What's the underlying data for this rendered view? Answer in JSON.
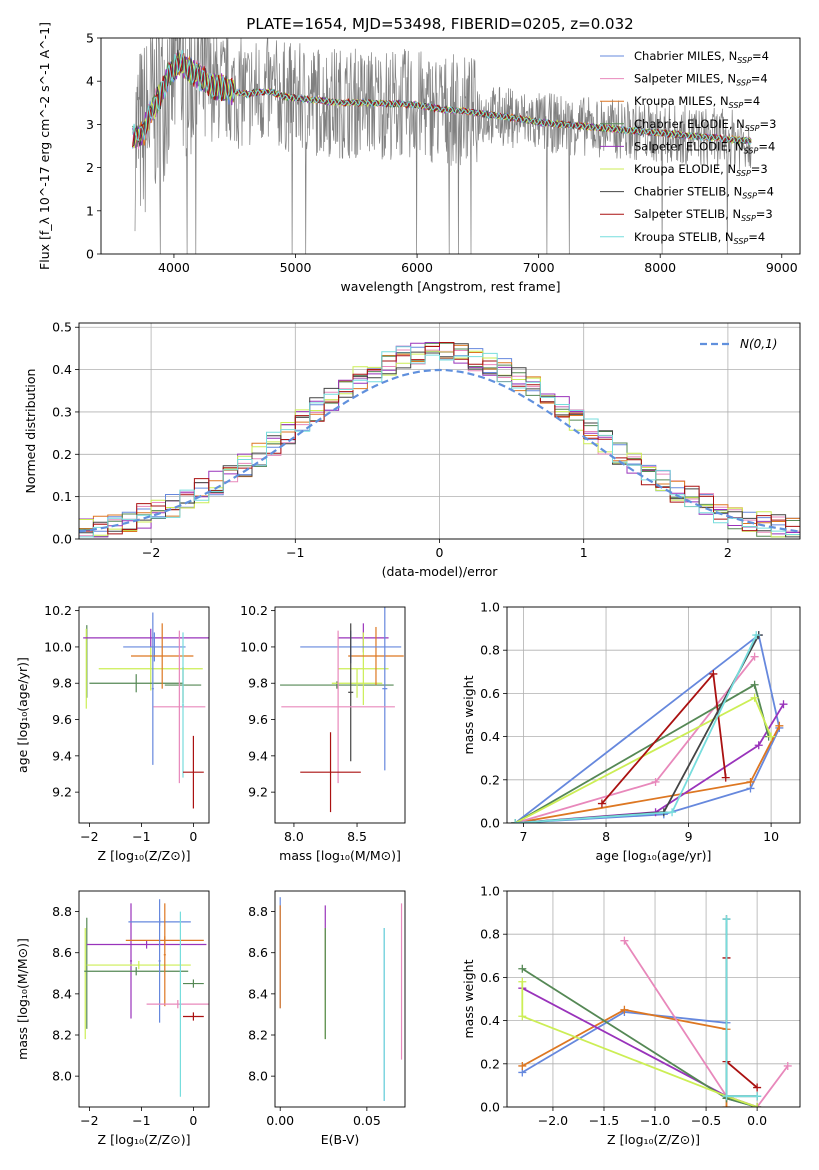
{
  "figure_title": "PLATE=1654, MJD=53498, FIBERID=0205, z=0.032",
  "colors": {
    "chabrier_miles": "#6688dd",
    "salpeter_miles": "#e888bb",
    "kroupa_miles": "#dd7722",
    "chabrier_elodie": "#558855",
    "salpeter_elodie": "#9933bb",
    "kroupa_elodie": "#ccee55",
    "chabrier_stelib": "#444444",
    "salpeter_stelib": "#aa1111",
    "kroupa_stelib": "#77dddd",
    "data_spectrum": "#808080",
    "normal_curve": "#6090dd"
  },
  "chart_data": [
    {
      "id": "spectrum",
      "type": "line",
      "xlabel": "wavelength [Angstrom, rest frame]",
      "ylabel": "Flux [f_λ 10^-17 erg cm^-2 s^-1 A^-1]",
      "xlim": [
        3400,
        9150
      ],
      "ylim": [
        0,
        5
      ],
      "xticks": [
        4000,
        5000,
        6000,
        7000,
        8000,
        9000
      ],
      "yticks": [
        0,
        1,
        2,
        3,
        4,
        5
      ],
      "legend_location": "upper right",
      "legend": [
        {
          "label": "Chabrier MILES, N",
          "sub": "SSP",
          "suffix": "=4",
          "color_key": "chabrier_miles"
        },
        {
          "label": "Salpeter MILES, N",
          "sub": "SSP",
          "suffix": "=4",
          "color_key": "salpeter_miles"
        },
        {
          "label": "Kroupa MILES, N",
          "sub": "SSP",
          "suffix": "=4",
          "color_key": "kroupa_miles"
        },
        {
          "label": "Chabrier ELODIE, N",
          "sub": "SSP",
          "suffix": "=3",
          "color_key": "chabrier_elodie"
        },
        {
          "label": "Salpeter ELODIE, N",
          "sub": "SSP",
          "suffix": "=4",
          "color_key": "salpeter_elodie"
        },
        {
          "label": "Kroupa ELODIE, N",
          "sub": "SSP",
          "suffix": "=3",
          "color_key": "kroupa_elodie"
        },
        {
          "label": "Chabrier STELIB, N",
          "sub": "SSP",
          "suffix": "=4",
          "color_key": "chabrier_stelib"
        },
        {
          "label": "Salpeter STELIB, N",
          "sub": "SSP",
          "suffix": "=3",
          "color_key": "salpeter_stelib"
        },
        {
          "label": "Kroupa STELIB, N",
          "sub": "SSP",
          "suffix": "=4",
          "color_key": "kroupa_stelib"
        }
      ],
      "model_continuum": {
        "x": [
          3650,
          3700,
          3750,
          3800,
          3850,
          3900,
          3950,
          4000,
          4050,
          4100,
          4200,
          4300,
          4400,
          4500,
          4600,
          4700,
          4800,
          4900,
          5000,
          5200,
          5400,
          5600,
          5800,
          6000,
          6200,
          6400,
          6600,
          6800,
          7000,
          7200,
          7400,
          7600,
          7800,
          8000,
          8200,
          8400,
          8600,
          8800
        ],
        "y": [
          2.7,
          2.75,
          2.8,
          3.2,
          3.5,
          3.75,
          4.1,
          4.3,
          4.45,
          4.3,
          4.15,
          3.9,
          3.85,
          3.75,
          3.7,
          3.75,
          3.75,
          3.65,
          3.6,
          3.55,
          3.5,
          3.5,
          3.48,
          3.45,
          3.35,
          3.3,
          3.22,
          3.15,
          3.05,
          3.0,
          2.95,
          2.9,
          2.85,
          2.8,
          2.75,
          2.7,
          2.65,
          2.6
        ]
      },
      "data_spectrum": {
        "x_range": [
          3680,
          8750
        ],
        "y_noise_amplitude": 1.4
      }
    },
    {
      "id": "residuals",
      "type": "histogram",
      "xlabel": "(data-model)/error",
      "ylabel": "Normed distribution",
      "xlim": [
        -2.5,
        2.5
      ],
      "ylim": [
        0,
        0.51
      ],
      "xticks": [
        -2,
        -1,
        0,
        1,
        2
      ],
      "yticks": [
        0.0,
        0.1,
        0.2,
        0.3,
        0.4,
        0.5
      ],
      "grid": true,
      "legend_location": "upper right",
      "reference_curve_label": "N(0,1)",
      "bin_width": 0.1,
      "bins_from": -2.5,
      "reference_curve": {
        "type": "normal",
        "mean": 0,
        "sigma": 1
      }
    },
    {
      "id": "age_vs_Z",
      "type": "errorbar",
      "xlabel": "Z [log10(Z/Z⊙)]",
      "ylabel": "age  [log10(age/yr)]",
      "xlim": [
        -2.2,
        0.3
      ],
      "ylim": [
        9.03,
        10.22
      ],
      "xticks": [
        -2,
        -1,
        0
      ],
      "yticks": [
        9.2,
        9.4,
        9.6,
        9.8,
        10.0,
        10.2
      ],
      "points": [
        {
          "x": -2.05,
          "xerr": 0.0,
          "y": 9.92,
          "yerr": 0.2,
          "color_key": "chabrier_elodie"
        },
        {
          "x": -2.06,
          "xerr": 0.0,
          "y": 9.88,
          "yerr": 0.22,
          "color_key": "kroupa_elodie"
        },
        {
          "x": -0.82,
          "xerr": 1.3,
          "y": 10.05,
          "yerr": 0.05,
          "color_key": "salpeter_elodie"
        },
        {
          "x": -0.82,
          "xerr": 1.0,
          "y": 9.88,
          "yerr": 0.12,
          "color_key": "kroupa_elodie"
        },
        {
          "x": -1.1,
          "xerr": 0.9,
          "y": 9.8,
          "yerr": 0.05,
          "color_key": "chabrier_elodie"
        },
        {
          "x": -0.2,
          "xerr": 0.35,
          "y": 9.79,
          "yerr": 0.1,
          "color_key": "chabrier_elodie"
        },
        {
          "x": -0.75,
          "xerr": 0.6,
          "y": 10.0,
          "yerr": 0.08,
          "color_key": "chabrier_miles"
        },
        {
          "x": -0.6,
          "xerr": 0.6,
          "y": 9.95,
          "yerr": 0.18,
          "color_key": "kroupa_miles"
        },
        {
          "x": -0.78,
          "xerr": 0.02,
          "y": 9.77,
          "yerr": 0.42,
          "color_key": "chabrier_miles"
        },
        {
          "x": -0.27,
          "xerr": 0.5,
          "y": 9.67,
          "yerr": 0.42,
          "color_key": "salpeter_miles"
        },
        {
          "x": -0.2,
          "xerr": 0.02,
          "y": 9.68,
          "yerr": 0.4,
          "color_key": "kroupa_stelib"
        },
        {
          "x": 0.0,
          "xerr": 0.2,
          "y": 9.31,
          "yerr": 0.2,
          "color_key": "salpeter_stelib"
        }
      ]
    },
    {
      "id": "age_vs_mass",
      "type": "errorbar",
      "xlabel": "mass [log10(M/M⊙)]",
      "ylabel": "",
      "xlim": [
        7.85,
        8.88
      ],
      "ylim": [
        9.03,
        10.22
      ],
      "xticks": [
        8.0,
        8.5
      ],
      "yticks": [
        9.2,
        9.4,
        9.6,
        9.8,
        10.0,
        10.2
      ],
      "points": [
        {
          "x": 8.34,
          "xerr": 0.45,
          "y": 9.79,
          "yerr": 0.02,
          "color_key": "chabrier_elodie"
        },
        {
          "x": 8.5,
          "xerr": 0.2,
          "y": 9.8,
          "yerr": 0.08,
          "color_key": "kroupa_elodie"
        },
        {
          "x": 8.55,
          "xerr": 0.2,
          "y": 10.05,
          "yerr": 0.08,
          "color_key": "salpeter_elodie"
        },
        {
          "x": 8.55,
          "xerr": 0.2,
          "y": 9.88,
          "yerr": 0.2,
          "color_key": "kroupa_elodie"
        },
        {
          "x": 8.65,
          "xerr": 0.22,
          "y": 9.95,
          "yerr": 0.16,
          "color_key": "kroupa_miles"
        },
        {
          "x": 8.45,
          "xerr": 0.4,
          "y": 10.0,
          "yerr": 0.09,
          "color_key": "chabrier_miles"
        },
        {
          "x": 8.45,
          "xerr": 0.02,
          "y": 9.75,
          "yerr": 0.38,
          "color_key": "chabrier_stelib"
        },
        {
          "x": 8.72,
          "xerr": 0.02,
          "y": 9.77,
          "yerr": 0.45,
          "color_key": "chabrier_miles"
        },
        {
          "x": 8.35,
          "xerr": 0.45,
          "y": 9.67,
          "yerr": 0.42,
          "color_key": "salpeter_miles"
        },
        {
          "x": 8.29,
          "xerr": 0.24,
          "y": 9.31,
          "yerr": 0.22,
          "color_key": "salpeter_stelib"
        }
      ]
    },
    {
      "id": "mass_weight_vs_age",
      "type": "line",
      "xlabel": "age  [log10(age/yr)]",
      "ylabel": "mass weight",
      "xlim": [
        6.8,
        10.35
      ],
      "ylim": [
        0,
        1.0
      ],
      "xticks": [
        7,
        8,
        9,
        10
      ],
      "yticks": [
        0.0,
        0.2,
        0.4,
        0.6,
        0.8,
        1.0
      ],
      "grid": true,
      "series": [
        {
          "color_key": "chabrier_miles",
          "x": [
            6.9,
            8.7,
            9.75,
            10.1,
            9.85,
            6.9
          ],
          "y": [
            0.0,
            0.04,
            0.16,
            0.44,
            0.87,
            0.0
          ]
        },
        {
          "color_key": "kroupa_miles",
          "x": [
            6.9,
            9.75,
            10.1
          ],
          "y": [
            0.0,
            0.19,
            0.45
          ]
        },
        {
          "color_key": "salpeter_miles",
          "x": [
            6.9,
            8.6,
            9.8
          ],
          "y": [
            0.0,
            0.19,
            0.77
          ]
        },
        {
          "color_key": "salpeter_elodie",
          "x": [
            6.9,
            8.6,
            9.85,
            10.15
          ],
          "y": [
            0.0,
            0.05,
            0.36,
            0.55
          ]
        },
        {
          "color_key": "chabrier_elodie",
          "x": [
            6.9,
            9.8,
            9.97
          ],
          "y": [
            0.0,
            0.64,
            0.4
          ]
        },
        {
          "color_key": "kroupa_elodie",
          "x": [
            6.9,
            9.8,
            10.0
          ],
          "y": [
            0.0,
            0.58,
            0.4
          ]
        },
        {
          "color_key": "salpeter_stelib",
          "x": [
            7.95,
            9.3,
            9.45
          ],
          "y": [
            0.09,
            0.69,
            0.21
          ]
        },
        {
          "color_key": "chabrier_stelib",
          "x": [
            6.9,
            8.7,
            9.85
          ],
          "y": [
            0.0,
            0.05,
            0.87
          ]
        },
        {
          "color_key": "kroupa_stelib",
          "x": [
            6.9,
            8.8,
            9.82
          ],
          "y": [
            0.0,
            0.05,
            0.87
          ]
        }
      ]
    },
    {
      "id": "mass_vs_Z",
      "type": "errorbar",
      "xlabel": "Z [log10(Z/Z⊙)]",
      "ylabel": "mass [log10(M/M⊙)]",
      "xlim": [
        -2.2,
        0.3
      ],
      "ylim": [
        7.85,
        8.9
      ],
      "xticks": [
        -2,
        -1,
        0
      ],
      "yticks": [
        8.0,
        8.2,
        8.4,
        8.6,
        8.8
      ],
      "points": [
        {
          "x": -2.05,
          "xerr": 0.0,
          "y": 8.5,
          "yerr": 0.27,
          "color_key": "chabrier_elodie"
        },
        {
          "x": -2.08,
          "xerr": 0.0,
          "y": 8.45,
          "yerr": 0.27,
          "color_key": "kroupa_elodie"
        },
        {
          "x": -0.9,
          "xerr": 1.15,
          "y": 8.64,
          "yerr": 0.02,
          "color_key": "salpeter_elodie"
        },
        {
          "x": -1.2,
          "xerr": 0.02,
          "y": 8.56,
          "yerr": 0.28,
          "color_key": "salpeter_elodie"
        },
        {
          "x": -1.05,
          "xerr": 1.0,
          "y": 8.54,
          "yerr": 0.02,
          "color_key": "kroupa_elodie"
        },
        {
          "x": -1.1,
          "xerr": 1.0,
          "y": 8.51,
          "yerr": 0.02,
          "color_key": "chabrier_elodie"
        },
        {
          "x": -0.65,
          "xerr": 0.6,
          "y": 8.75,
          "yerr": 0.02,
          "color_key": "chabrier_miles"
        },
        {
          "x": -0.55,
          "xerr": 0.75,
          "y": 8.66,
          "yerr": 0.02,
          "color_key": "kroupa_miles"
        },
        {
          "x": -0.65,
          "xerr": 0.02,
          "y": 8.56,
          "yerr": 0.3,
          "color_key": "chabrier_miles"
        },
        {
          "x": -0.55,
          "xerr": 0.02,
          "y": 8.59,
          "yerr": 0.25,
          "color_key": "kroupa_miles"
        },
        {
          "x": -0.3,
          "xerr": 0.6,
          "y": 8.35,
          "yerr": 0.02,
          "color_key": "salpeter_miles"
        },
        {
          "x": -0.25,
          "xerr": 0.02,
          "y": 8.35,
          "yerr": 0.45,
          "color_key": "kroupa_stelib"
        },
        {
          "x": 0.0,
          "xerr": 0.2,
          "y": 8.45,
          "yerr": 0.02,
          "color_key": "chabrier_elodie"
        },
        {
          "x": 0.0,
          "xerr": 0.2,
          "y": 8.29,
          "yerr": 0.02,
          "color_key": "salpeter_stelib"
        }
      ]
    },
    {
      "id": "mass_vs_EBV",
      "type": "errorbar",
      "xlabel": "E(B-V)",
      "ylabel": "",
      "xlim": [
        -0.003,
        0.072
      ],
      "ylim": [
        7.85,
        8.9
      ],
      "xticks": [
        0.0,
        0.05
      ],
      "yticks": [
        8.0,
        8.2,
        8.4,
        8.6,
        8.8
      ],
      "points": [
        {
          "x": 0.0,
          "xerr": 0.0,
          "y": 8.6,
          "yerr": 0.27,
          "color_key": "chabrier_miles"
        },
        {
          "x": 0.0,
          "xerr": 0.0,
          "y": 8.58,
          "yerr": 0.25,
          "color_key": "kroupa_miles"
        },
        {
          "x": 0.026,
          "xerr": 0.0,
          "y": 8.6,
          "yerr": 0.23,
          "color_key": "salpeter_elodie"
        },
        {
          "x": 0.026,
          "xerr": 0.0,
          "y": 8.45,
          "yerr": 0.27,
          "color_key": "kroupa_elodie"
        },
        {
          "x": 0.026,
          "xerr": 0.0,
          "y": 8.45,
          "yerr": 0.27,
          "color_key": "chabrier_elodie"
        },
        {
          "x": 0.06,
          "xerr": 0.0,
          "y": 8.3,
          "yerr": 0.42,
          "color_key": "chabrier_miles"
        },
        {
          "x": 0.06,
          "xerr": 0.0,
          "y": 8.3,
          "yerr": 0.42,
          "color_key": "kroupa_stelib"
        },
        {
          "x": 0.07,
          "xerr": 0.0,
          "y": 8.46,
          "yerr": 0.38,
          "color_key": "salpeter_miles"
        }
      ]
    },
    {
      "id": "mass_weight_vs_Z",
      "type": "line",
      "xlabel": "Z [log10(Z/Z⊙)]",
      "ylabel": "mass weight",
      "xlim": [
        -2.45,
        0.42
      ],
      "ylim": [
        0,
        1.0
      ],
      "xticks": [
        -2.0,
        -1.5,
        -1.0,
        -0.5,
        0.0
      ],
      "yticks": [
        0.0,
        0.2,
        0.4,
        0.6,
        0.8,
        1.0
      ],
      "grid": true,
      "series": [
        {
          "color_key": "chabrier_miles",
          "x": [
            -2.3,
            -1.3,
            -0.3,
            -0.3,
            0.0
          ],
          "y": [
            0.16,
            0.44,
            0.39,
            0.04,
            0.0
          ]
        },
        {
          "color_key": "kroupa_miles",
          "x": [
            -2.3,
            -1.3,
            -0.3,
            -0.3
          ],
          "y": [
            0.19,
            0.45,
            0.36,
            0.0
          ]
        },
        {
          "color_key": "salpeter_miles",
          "x": [
            -1.3,
            -0.3,
            0.0,
            0.3
          ],
          "y": [
            0.77,
            0.05,
            0.0,
            0.19
          ]
        },
        {
          "color_key": "salpeter_elodie",
          "x": [
            -2.3,
            -0.3,
            0.0
          ],
          "y": [
            0.55,
            0.05,
            0.0
          ]
        },
        {
          "color_key": "chabrier_elodie",
          "x": [
            -2.3,
            -0.3,
            0.0
          ],
          "y": [
            0.64,
            0.04,
            0.0
          ]
        },
        {
          "color_key": "kroupa_elodie",
          "x": [
            -2.3,
            -2.3,
            -0.3,
            0.0
          ],
          "y": [
            0.58,
            0.42,
            0.05,
            0.0
          ]
        },
        {
          "color_key": "salpeter_stelib",
          "x": [
            -0.3,
            -0.3,
            0.0
          ],
          "y": [
            0.69,
            0.21,
            0.09
          ]
        },
        {
          "color_key": "chabrier_stelib",
          "x": [
            -0.3,
            -0.3,
            0.0
          ],
          "y": [
            0.87,
            0.05,
            0.05
          ]
        },
        {
          "color_key": "kroupa_stelib",
          "x": [
            -0.3,
            -0.3,
            0.0
          ],
          "y": [
            0.87,
            0.05,
            0.05
          ]
        }
      ]
    }
  ]
}
